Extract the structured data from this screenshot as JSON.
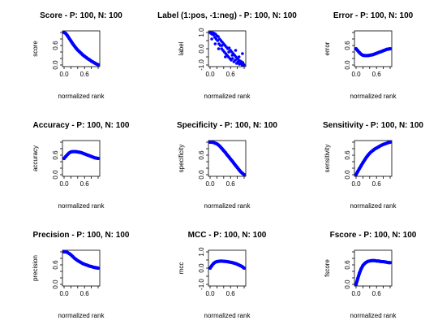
{
  "chart_data": [
    {
      "type": "scatter",
      "title": "Score - P: 100, N: 100",
      "xlabel": "normalized rank",
      "ylabel": "score",
      "xlim": [
        0,
        1
      ],
      "ylim": [
        0,
        1
      ],
      "xticks": [
        0.0,
        0.6
      ],
      "xtick_labels": [
        "0.0",
        "0.6"
      ],
      "yticks": [
        0.0,
        0.6
      ],
      "ytick_labels": [
        "0.0",
        "0.6"
      ],
      "series": [
        {
          "color": "#0000ff",
          "x": [
            0.0,
            0.05,
            0.1,
            0.15,
            0.2,
            0.25,
            0.3,
            0.35,
            0.4,
            0.45,
            0.5,
            0.55,
            0.6,
            0.65,
            0.7,
            0.75,
            0.8,
            0.85,
            0.9,
            0.95,
            1.0
          ],
          "y": [
            1.0,
            0.97,
            0.9,
            0.82,
            0.74,
            0.66,
            0.59,
            0.52,
            0.46,
            0.41,
            0.36,
            0.31,
            0.27,
            0.23,
            0.19,
            0.16,
            0.12,
            0.09,
            0.06,
            0.03,
            0.01
          ]
        }
      ]
    },
    {
      "type": "scatter",
      "title": "Label (1:pos, -1:neg) - P: 100, N: 100",
      "xlabel": "normalized rank",
      "ylabel": "label",
      "xlim": [
        0,
        1
      ],
      "ylim": [
        -1,
        1
      ],
      "xticks": [
        0.0,
        0.6
      ],
      "xtick_labels": [
        "0.0",
        "0.6"
      ],
      "yticks": [
        -1.0,
        0.0,
        1.0
      ],
      "ytick_labels": [
        "-1.0",
        "0.0",
        "1.0"
      ],
      "series": [
        {
          "color": "#0000ff",
          "x": [
            0.0,
            0.02,
            0.04,
            0.06,
            0.08,
            0.1,
            0.12,
            0.14,
            0.16,
            0.18,
            0.2,
            0.22,
            0.24,
            0.26,
            0.28,
            0.3,
            0.32,
            0.34,
            0.36,
            0.38,
            0.4,
            0.42,
            0.44,
            0.46,
            0.48,
            0.5,
            0.52,
            0.54,
            0.56,
            0.58,
            0.6,
            0.62,
            0.64,
            0.66,
            0.68,
            0.7,
            0.72,
            0.74,
            0.76,
            0.78,
            0.8,
            0.82,
            0.84,
            0.86,
            0.88,
            0.9,
            0.92,
            0.94,
            0.96,
            0.98,
            1.0,
            0.05,
            0.15,
            0.25,
            0.35,
            0.45,
            0.55,
            0.65,
            0.75,
            0.85,
            0.95
          ],
          "y": [
            1.0,
            0.95,
            1.0,
            0.9,
            0.98,
            0.85,
            0.95,
            0.7,
            0.9,
            0.6,
            0.8,
            0.5,
            0.75,
            0.3,
            0.6,
            0.2,
            0.5,
            0.0,
            0.4,
            -0.1,
            0.3,
            -0.2,
            0.2,
            -0.3,
            0.1,
            -0.4,
            0.0,
            -0.5,
            0.05,
            -0.6,
            -0.1,
            -0.7,
            -0.2,
            -0.6,
            -0.3,
            -0.8,
            -0.4,
            -0.7,
            -0.5,
            -0.9,
            -0.6,
            -0.8,
            -0.7,
            -0.95,
            -0.75,
            -0.9,
            -0.8,
            -1.0,
            -0.85,
            -0.95,
            -1.0,
            0.6,
            0.3,
            0.0,
            0.2,
            -0.5,
            -0.2,
            -0.4,
            -0.1,
            -0.5,
            -0.3
          ]
        }
      ]
    },
    {
      "type": "scatter",
      "title": "Error - P: 100, N: 100",
      "xlabel": "normalized rank",
      "ylabel": "error",
      "xlim": [
        0,
        1
      ],
      "ylim": [
        0,
        1
      ],
      "xticks": [
        0.0,
        0.6
      ],
      "xtick_labels": [
        "0.0",
        "0.6"
      ],
      "yticks": [
        0.0,
        0.6
      ],
      "ytick_labels": [
        "0.0",
        "0.6"
      ],
      "series": [
        {
          "color": "#0000ff",
          "x": [
            0.0,
            0.05,
            0.1,
            0.15,
            0.2,
            0.25,
            0.3,
            0.35,
            0.4,
            0.45,
            0.5,
            0.55,
            0.6,
            0.65,
            0.7,
            0.75,
            0.8,
            0.85,
            0.9,
            0.95,
            1.0
          ],
          "y": [
            0.5,
            0.44,
            0.38,
            0.33,
            0.3,
            0.29,
            0.29,
            0.29,
            0.3,
            0.31,
            0.32,
            0.34,
            0.36,
            0.38,
            0.4,
            0.42,
            0.44,
            0.46,
            0.48,
            0.49,
            0.5
          ]
        }
      ]
    },
    {
      "type": "scatter",
      "title": "Accuracy - P: 100, N: 100",
      "xlabel": "normalized rank",
      "ylabel": "accuracy",
      "xlim": [
        0,
        1
      ],
      "ylim": [
        0,
        1
      ],
      "xticks": [
        0.0,
        0.6
      ],
      "xtick_labels": [
        "0.0",
        "0.6"
      ],
      "yticks": [
        0.0,
        0.6
      ],
      "ytick_labels": [
        "0.0",
        "0.6"
      ],
      "series": [
        {
          "color": "#0000ff",
          "x": [
            0.0,
            0.05,
            0.1,
            0.15,
            0.2,
            0.25,
            0.3,
            0.35,
            0.4,
            0.45,
            0.5,
            0.55,
            0.6,
            0.65,
            0.7,
            0.75,
            0.8,
            0.85,
            0.9,
            0.95,
            1.0
          ],
          "y": [
            0.5,
            0.56,
            0.62,
            0.67,
            0.7,
            0.71,
            0.71,
            0.71,
            0.7,
            0.69,
            0.68,
            0.66,
            0.64,
            0.62,
            0.6,
            0.58,
            0.56,
            0.54,
            0.52,
            0.51,
            0.5
          ]
        }
      ]
    },
    {
      "type": "scatter",
      "title": "Specificity - P: 100, N: 100",
      "xlabel": "normalized rank",
      "ylabel": "specificity",
      "xlim": [
        0,
        1
      ],
      "ylim": [
        0,
        1
      ],
      "xticks": [
        0.0,
        0.6
      ],
      "xtick_labels": [
        "0.0",
        "0.6"
      ],
      "yticks": [
        0.0,
        0.6
      ],
      "ytick_labels": [
        "0.0",
        "0.6"
      ],
      "series": [
        {
          "color": "#0000ff",
          "x": [
            0.0,
            0.05,
            0.1,
            0.15,
            0.2,
            0.25,
            0.3,
            0.35,
            0.4,
            0.45,
            0.5,
            0.55,
            0.6,
            0.65,
            0.7,
            0.75,
            0.8,
            0.85,
            0.9,
            0.95,
            1.0
          ],
          "y": [
            1.0,
            1.0,
            0.99,
            0.97,
            0.95,
            0.91,
            0.86,
            0.8,
            0.74,
            0.68,
            0.61,
            0.55,
            0.48,
            0.42,
            0.35,
            0.28,
            0.22,
            0.15,
            0.09,
            0.04,
            0.0
          ]
        }
      ]
    },
    {
      "type": "scatter",
      "title": "Sensitivity - P: 100, N: 100",
      "xlabel": "normalized rank",
      "ylabel": "sensitivity",
      "xlim": [
        0,
        1
      ],
      "ylim": [
        0,
        1
      ],
      "xticks": [
        0.0,
        0.6
      ],
      "xtick_labels": [
        "0.0",
        "0.6"
      ],
      "yticks": [
        0.0,
        0.6
      ],
      "ytick_labels": [
        "0.0",
        "0.6"
      ],
      "series": [
        {
          "color": "#0000ff",
          "x": [
            0.0,
            0.05,
            0.1,
            0.15,
            0.2,
            0.25,
            0.3,
            0.35,
            0.4,
            0.45,
            0.5,
            0.55,
            0.6,
            0.65,
            0.7,
            0.75,
            0.8,
            0.85,
            0.9,
            0.95,
            1.0
          ],
          "y": [
            0.0,
            0.1,
            0.19,
            0.28,
            0.37,
            0.45,
            0.53,
            0.6,
            0.66,
            0.71,
            0.75,
            0.79,
            0.82,
            0.85,
            0.88,
            0.91,
            0.93,
            0.95,
            0.97,
            0.99,
            1.0
          ]
        }
      ]
    },
    {
      "type": "scatter",
      "title": "Precision - P: 100, N: 100",
      "xlabel": "normalized rank",
      "ylabel": "precision",
      "xlim": [
        0,
        1
      ],
      "ylim": [
        0,
        1
      ],
      "xticks": [
        0.0,
        0.6
      ],
      "xtick_labels": [
        "0.0",
        "0.6"
      ],
      "yticks": [
        0.0,
        0.6
      ],
      "ytick_labels": [
        "0.0",
        "0.6"
      ],
      "series": [
        {
          "color": "#0000ff",
          "x": [
            0.0,
            0.05,
            0.1,
            0.15,
            0.2,
            0.25,
            0.3,
            0.35,
            0.4,
            0.45,
            0.5,
            0.55,
            0.6,
            0.65,
            0.7,
            0.75,
            0.8,
            0.85,
            0.9,
            0.95,
            1.0
          ],
          "y": [
            1.0,
            1.0,
            0.98,
            0.95,
            0.91,
            0.86,
            0.81,
            0.77,
            0.73,
            0.7,
            0.67,
            0.64,
            0.62,
            0.6,
            0.58,
            0.56,
            0.55,
            0.53,
            0.52,
            0.51,
            0.5
          ]
        }
      ]
    },
    {
      "type": "scatter",
      "title": "MCC - P: 100, N: 100",
      "xlabel": "normalized rank",
      "ylabel": "mcc",
      "xlim": [
        0,
        1
      ],
      "ylim": [
        -1,
        1
      ],
      "xticks": [
        0.0,
        0.6
      ],
      "xtick_labels": [
        "0.0",
        "0.6"
      ],
      "yticks": [
        -1.0,
        0.0,
        1.0
      ],
      "ytick_labels": [
        "-1.0",
        "0.0",
        "1.0"
      ],
      "series": [
        {
          "color": "#0000ff",
          "x": [
            0.0,
            0.05,
            0.1,
            0.15,
            0.2,
            0.25,
            0.3,
            0.35,
            0.4,
            0.45,
            0.5,
            0.55,
            0.6,
            0.65,
            0.7,
            0.75,
            0.8,
            0.85,
            0.9,
            0.95,
            1.0
          ],
          "y": [
            0.0,
            0.15,
            0.28,
            0.36,
            0.4,
            0.42,
            0.43,
            0.43,
            0.42,
            0.41,
            0.4,
            0.38,
            0.36,
            0.34,
            0.31,
            0.28,
            0.24,
            0.19,
            0.14,
            0.08,
            0.0
          ]
        }
      ]
    },
    {
      "type": "scatter",
      "title": "Fscore - P: 100, N: 100",
      "xlabel": "normalized rank",
      "ylabel": "fscore",
      "xlim": [
        0,
        1
      ],
      "ylim": [
        0,
        1
      ],
      "xticks": [
        0.0,
        0.6
      ],
      "xtick_labels": [
        "0.0",
        "0.6"
      ],
      "yticks": [
        0.0,
        0.6
      ],
      "ytick_labels": [
        "0.0",
        "0.6"
      ],
      "series": [
        {
          "color": "#0000ff",
          "x": [
            0.0,
            0.05,
            0.1,
            0.15,
            0.2,
            0.25,
            0.3,
            0.35,
            0.4,
            0.45,
            0.5,
            0.55,
            0.6,
            0.65,
            0.7,
            0.75,
            0.8,
            0.85,
            0.9,
            0.95,
            1.0
          ],
          "y": [
            0.0,
            0.18,
            0.35,
            0.48,
            0.58,
            0.64,
            0.68,
            0.71,
            0.72,
            0.73,
            0.73,
            0.73,
            0.72,
            0.72,
            0.71,
            0.7,
            0.7,
            0.69,
            0.68,
            0.67,
            0.67
          ]
        }
      ]
    }
  ]
}
